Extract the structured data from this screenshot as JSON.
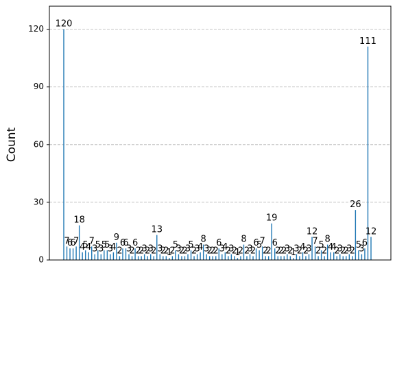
{
  "chart_data": {
    "type": "bar",
    "y_label": "Count",
    "categories": [
      null,
      null,
      null,
      null,
      null,
      null,
      null,
      null,
      null,
      null,
      null,
      null,
      null,
      null,
      null,
      null,
      null,
      null,
      null,
      null,
      null,
      null,
      null,
      null,
      null,
      null,
      null,
      null,
      null,
      null,
      null,
      null,
      null,
      null,
      null,
      null,
      null,
      null,
      null,
      null,
      null,
      null,
      null,
      null,
      null,
      null,
      null,
      null,
      null,
      null,
      null,
      null,
      null,
      null,
      null,
      null,
      null,
      null,
      null,
      null,
      null,
      null,
      null,
      null,
      null,
      null,
      null,
      null,
      null,
      null,
      null,
      null,
      null,
      null,
      null,
      null,
      null,
      null,
      null,
      null,
      null,
      null,
      null,
      null,
      null,
      null,
      null,
      null,
      null,
      null,
      null,
      null,
      null,
      null,
      null,
      null,
      null,
      null,
      null,
      null
    ],
    "values": [
      120,
      7,
      6,
      6,
      7,
      18,
      4,
      5,
      4,
      7,
      3,
      5,
      3,
      5,
      5,
      3,
      4,
      9,
      2,
      6,
      6,
      3,
      2,
      6,
      2,
      2,
      3,
      2,
      3,
      2,
      13,
      3,
      2,
      2,
      1,
      2,
      5,
      3,
      2,
      2,
      3,
      5,
      2,
      3,
      4,
      8,
      3,
      2,
      2,
      2,
      6,
      3,
      4,
      2,
      3,
      2,
      1,
      2,
      8,
      2,
      3,
      2,
      6,
      5,
      7,
      2,
      2,
      19,
      6,
      2,
      2,
      2,
      3,
      2,
      1,
      3,
      2,
      4,
      2,
      3,
      12,
      7,
      2,
      5,
      2,
      8,
      4,
      4,
      2,
      3,
      2,
      2,
      3,
      2,
      26,
      5,
      3,
      6,
      111,
      12
    ],
    "color": "#1f77b4",
    "ylim": [
      0,
      132
    ],
    "yticks": [
      0,
      30,
      60,
      90,
      120
    ],
    "grid": true
  }
}
